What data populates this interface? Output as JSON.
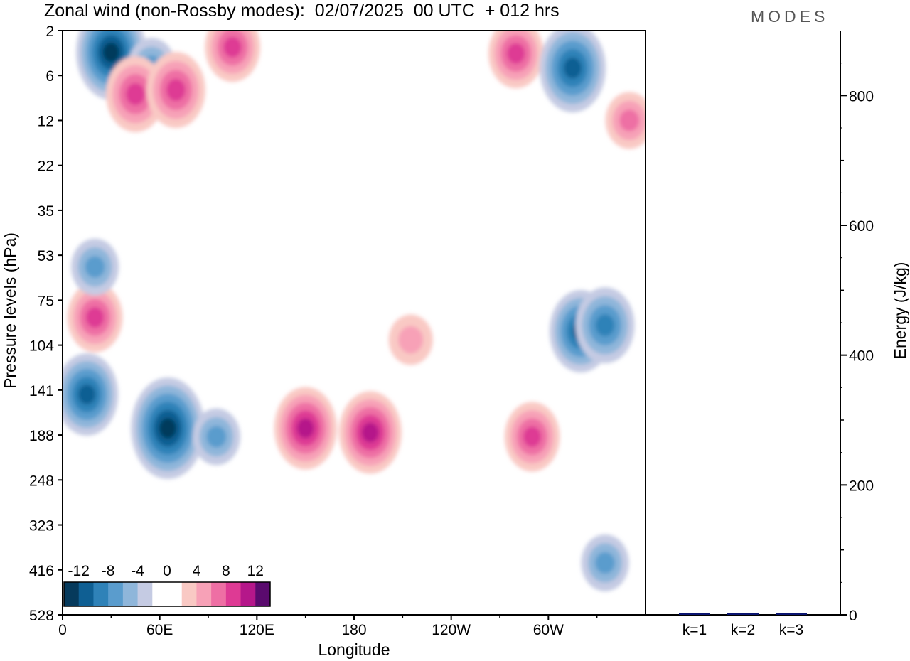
{
  "header": {
    "title": "Zonal wind (non-Rossby modes):  02/07/2025  00 UTC  + 012 hrs",
    "brand": "MODES"
  },
  "chart_data": [
    {
      "type": "heatmap",
      "title": "Zonal wind (non-Rossby modes):  02/07/2025  00 UTC  + 012 hrs",
      "xlabel": "Longitude",
      "ylabel": "Pressure levels (hPa)",
      "x_ticks": [
        "0",
        "60E",
        "120E",
        "180",
        "120W",
        "60W"
      ],
      "y_ticks": [
        "2",
        "6",
        "12",
        "22",
        "35",
        "53",
        "75",
        "104",
        "141",
        "188",
        "248",
        "323",
        "416",
        "528"
      ],
      "colorbar": {
        "labels": [
          "-12",
          "-8",
          "-4",
          "0",
          "4",
          "8",
          "12"
        ],
        "levels": [
          -14,
          -12,
          -10,
          -8,
          -6,
          -4,
          -2,
          0,
          2,
          4,
          6,
          8,
          10,
          12,
          14
        ],
        "colors": [
          "#063a5c",
          "#0f5f93",
          "#2f82b8",
          "#5a9ccd",
          "#8fb6da",
          "#c5cbe3",
          "#ffffff",
          "#ffffff",
          "#f9c9c4",
          "#f7a1b7",
          "#ee6fa4",
          "#de3a94",
          "#b5178a",
          "#5a0a6e"
        ]
      },
      "features": [
        {
          "lon": 30,
          "p": 3.4,
          "value": -12
        },
        {
          "lon": 55,
          "p": 4.8,
          "value": -6
        },
        {
          "lon": 45,
          "p": 8,
          "value": 9
        },
        {
          "lon": 70,
          "p": 7.5,
          "value": 9
        },
        {
          "lon": 105,
          "p": 3,
          "value": 8
        },
        {
          "lon": 280,
          "p": 3.5,
          "value": 8
        },
        {
          "lon": 315,
          "p": 5,
          "value": -11
        },
        {
          "lon": 350,
          "p": 12,
          "value": 6
        },
        {
          "lon": 20,
          "p": 85,
          "value": 8
        },
        {
          "lon": 20,
          "p": 58,
          "value": -6
        },
        {
          "lon": 15,
          "p": 145,
          "value": -10
        },
        {
          "lon": 65,
          "p": 180,
          "value": -13
        },
        {
          "lon": 95,
          "p": 190,
          "value": -6
        },
        {
          "lon": 150,
          "p": 180,
          "value": 10
        },
        {
          "lon": 190,
          "p": 185,
          "value": 10
        },
        {
          "lon": 215,
          "p": 100,
          "value": 5
        },
        {
          "lon": 290,
          "p": 190,
          "value": 8
        },
        {
          "lon": 320,
          "p": 94,
          "value": -10
        },
        {
          "lon": 335,
          "p": 90,
          "value": -9
        },
        {
          "lon": 335,
          "p": 400,
          "value": -6
        }
      ]
    },
    {
      "type": "bar",
      "categories": [
        "k=1",
        "k=2",
        "k=3"
      ],
      "values": [
        3,
        2,
        1
      ],
      "ylabel": "Energy (J/kg)",
      "y_ticks": [
        "0",
        "200",
        "400",
        "600",
        "800"
      ],
      "ylim": [
        0,
        900
      ],
      "bar_color": "#0a1470"
    }
  ]
}
